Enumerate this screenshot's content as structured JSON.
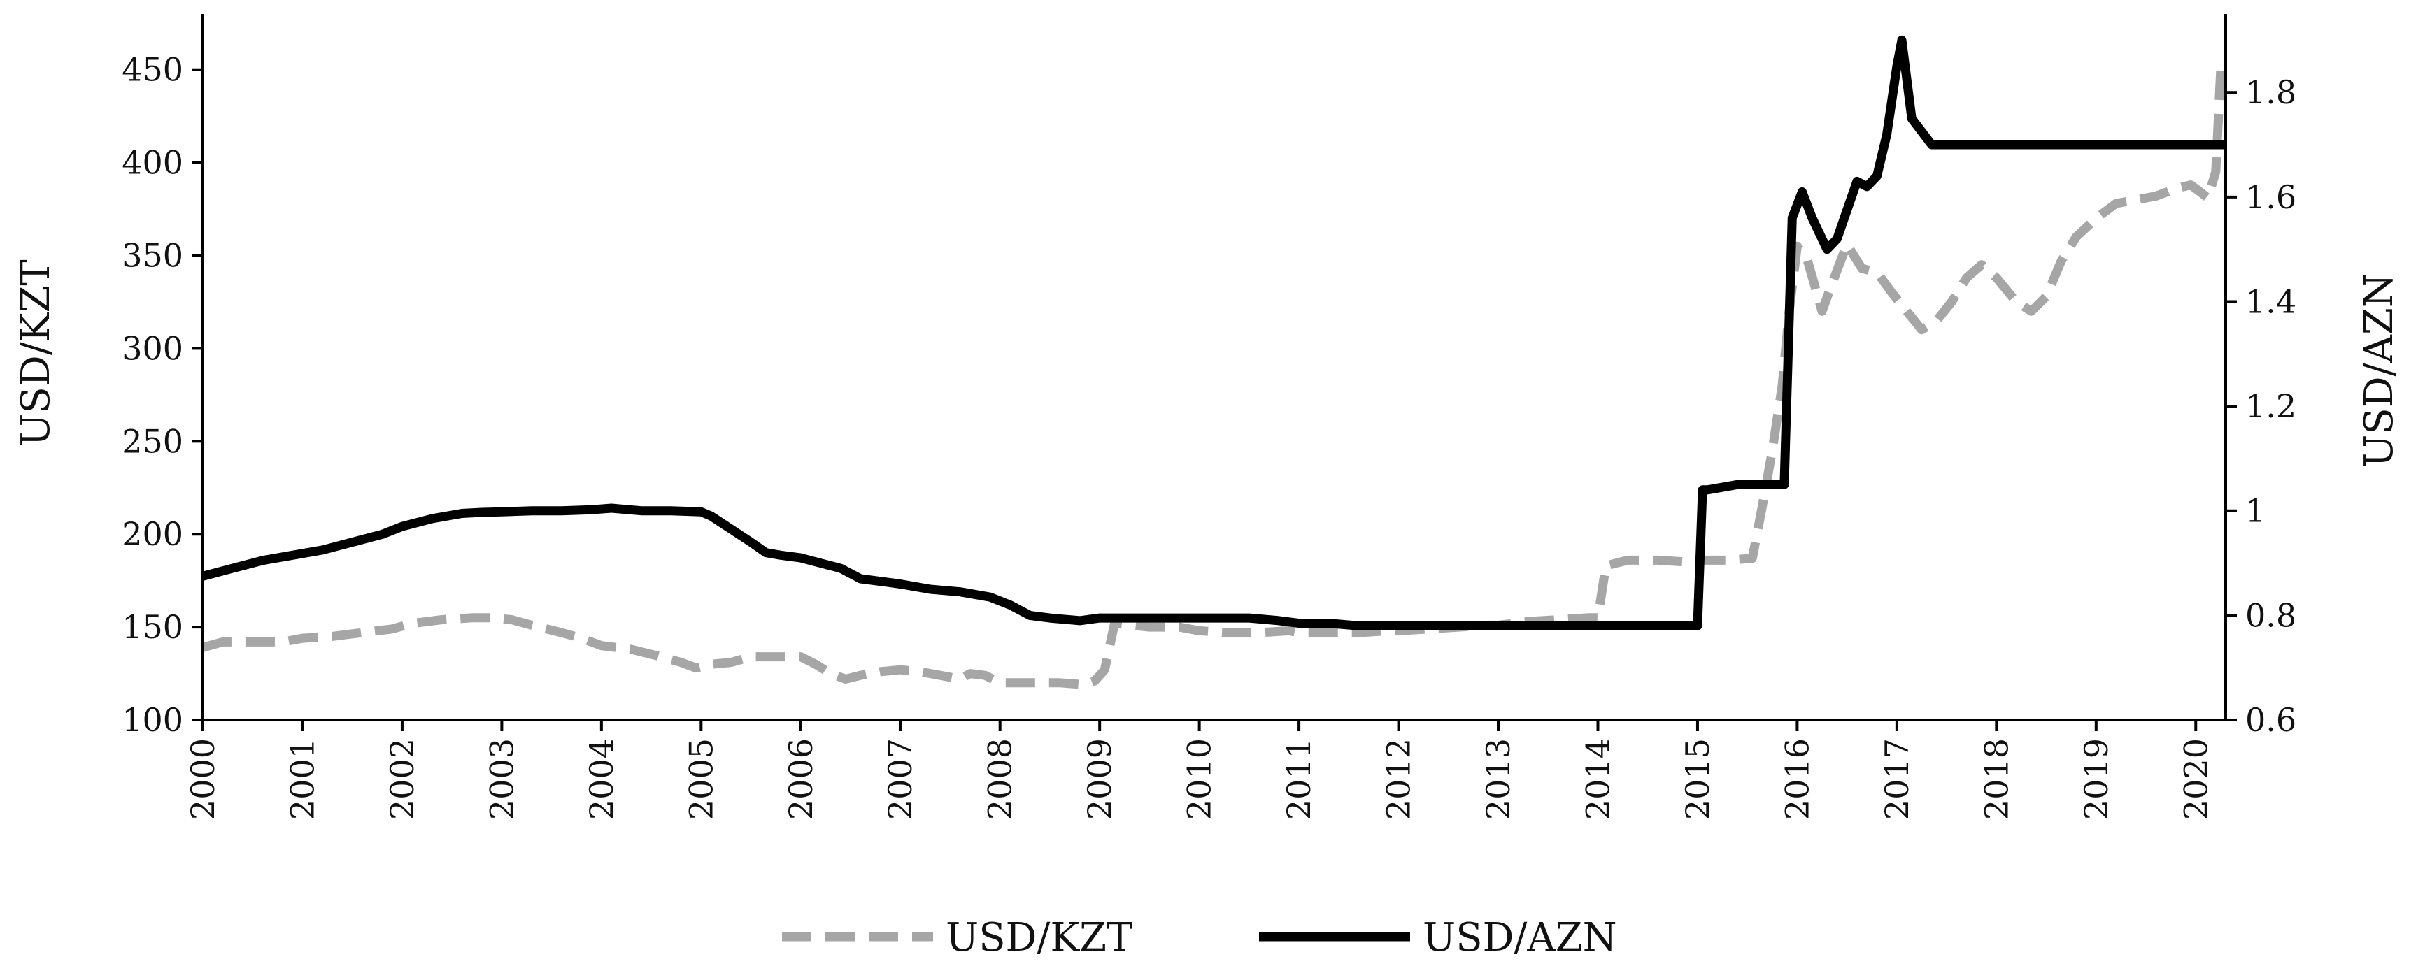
{
  "chart_data": {
    "type": "line",
    "title": "",
    "xlabel": "",
    "ylabel_left": "USD/KZT",
    "ylabel_right": "USD/AZN",
    "xlim": [
      2000,
      2020.3
    ],
    "ylim_left": [
      100,
      480
    ],
    "ylim_right": [
      0.6,
      1.95
    ],
    "yticks_left": [
      100,
      150,
      200,
      250,
      300,
      350,
      400,
      450
    ],
    "yticks_right": [
      0.6,
      0.8,
      1,
      1.2,
      1.4,
      1.6,
      1.8
    ],
    "yticks_right_labels": [
      "0.6",
      "0.8",
      "1",
      "1.2",
      "1.4",
      "1.6",
      "1.8"
    ],
    "xticks": [
      2000,
      2001,
      2002,
      2003,
      2004,
      2005,
      2006,
      2007,
      2008,
      2009,
      2010,
      2011,
      2012,
      2013,
      2014,
      2015,
      2016,
      2017,
      2018,
      2019,
      2020
    ],
    "grid": false,
    "legend_position": "bottom",
    "series": [
      {
        "name": "USD/KZT",
        "axis": "left",
        "color": "#a6a6a6",
        "dash": "dashed",
        "x": [
          2000.0,
          2000.2,
          2000.5,
          2000.8,
          2001.0,
          2001.3,
          2001.6,
          2001.9,
          2002.1,
          2002.4,
          2002.7,
          2002.9,
          2003.1,
          2003.3,
          2003.6,
          2003.8,
          2004.0,
          2004.3,
          2004.6,
          2004.8,
          2004.95,
          2005.1,
          2005.3,
          2005.5,
          2005.8,
          2006.0,
          2006.15,
          2006.3,
          2006.45,
          2006.6,
          2006.8,
          2007.0,
          2007.2,
          2007.4,
          2007.6,
          2007.7,
          2007.85,
          2008.0,
          2008.3,
          2008.6,
          2008.85,
          2008.95,
          2009.05,
          2009.15,
          2009.5,
          2009.8,
          2010.0,
          2010.3,
          2010.6,
          2010.9,
          2011.0,
          2011.3,
          2011.6,
          2011.9,
          2012.0,
          2012.3,
          2012.6,
          2012.9,
          2013.0,
          2013.3,
          2013.6,
          2013.9,
          2014.0,
          2014.08,
          2014.3,
          2014.6,
          2014.9,
          2015.0,
          2015.3,
          2015.55,
          2015.65,
          2015.75,
          2015.85,
          2015.92,
          2016.0,
          2016.1,
          2016.25,
          2016.35,
          2016.5,
          2016.65,
          2016.8,
          2016.95,
          2017.1,
          2017.25,
          2017.4,
          2017.55,
          2017.7,
          2017.85,
          2018.0,
          2018.2,
          2018.35,
          2018.5,
          2018.65,
          2018.8,
          2019.0,
          2019.2,
          2019.4,
          2019.6,
          2019.8,
          2019.95,
          2020.05,
          2020.12,
          2020.2,
          2020.25
        ],
        "values": [
          139,
          142,
          142,
          142,
          144,
          145,
          147,
          149,
          152,
          154,
          155,
          155,
          154,
          151,
          147,
          144,
          140,
          138,
          134,
          131,
          128,
          130,
          131,
          134,
          134,
          134,
          130,
          125,
          122,
          124,
          126,
          127,
          126,
          124,
          122,
          125,
          124,
          120,
          120,
          120,
          119,
          121,
          127,
          152,
          150,
          150,
          148,
          147,
          147,
          148,
          147,
          147,
          147,
          148,
          148,
          149,
          150,
          151,
          151,
          153,
          154,
          155,
          155,
          183,
          186,
          186,
          185,
          186,
          186,
          187,
          215,
          245,
          280,
          320,
          355,
          348,
          320,
          335,
          356,
          343,
          341,
          330,
          320,
          310,
          315,
          325,
          338,
          345,
          338,
          325,
          320,
          328,
          347,
          360,
          370,
          378,
          380,
          382,
          386,
          388,
          384,
          381,
          395,
          450
        ]
      },
      {
        "name": "USD/AZN",
        "axis": "right",
        "color": "#000000",
        "dash": "solid",
        "x": [
          2000.0,
          2000.3,
          2000.6,
          2000.9,
          2001.2,
          2001.5,
          2001.8,
          2002.0,
          2002.3,
          2002.6,
          2002.8,
          2003.0,
          2003.3,
          2003.6,
          2003.9,
          2004.1,
          2004.4,
          2004.7,
          2005.0,
          2005.1,
          2005.3,
          2005.5,
          2005.65,
          2005.8,
          2006.0,
          2006.2,
          2006.4,
          2006.6,
          2006.8,
          2007.0,
          2007.3,
          2007.6,
          2007.9,
          2008.1,
          2008.3,
          2008.5,
          2008.8,
          2009.0,
          2009.3,
          2009.6,
          2009.9,
          2010.2,
          2010.5,
          2010.8,
          2011.0,
          2011.3,
          2011.6,
          2011.9,
          2012.2,
          2012.5,
          2012.8,
          2013.0,
          2013.3,
          2013.6,
          2013.9,
          2014.2,
          2014.5,
          2014.8,
          2015.0,
          2015.05,
          2015.1,
          2015.4,
          2015.7,
          2015.87,
          2015.95,
          2016.05,
          2016.15,
          2016.3,
          2016.4,
          2016.6,
          2016.7,
          2016.8,
          2016.9,
          2017.0,
          2017.05,
          2017.15,
          2017.35,
          2017.6,
          2017.9,
          2018.1,
          2018.4,
          2018.7,
          2019.0,
          2019.3,
          2019.6,
          2019.9,
          2020.1,
          2020.3
        ],
        "values": [
          0.875,
          0.89,
          0.905,
          0.915,
          0.925,
          0.94,
          0.955,
          0.97,
          0.985,
          0.995,
          0.997,
          0.998,
          1.0,
          1.0,
          1.002,
          1.005,
          1.0,
          1.0,
          0.998,
          0.99,
          0.965,
          0.94,
          0.92,
          0.915,
          0.91,
          0.9,
          0.89,
          0.87,
          0.865,
          0.86,
          0.85,
          0.845,
          0.835,
          0.82,
          0.8,
          0.795,
          0.79,
          0.795,
          0.795,
          0.795,
          0.795,
          0.795,
          0.795,
          0.79,
          0.785,
          0.785,
          0.78,
          0.78,
          0.78,
          0.78,
          0.78,
          0.78,
          0.78,
          0.78,
          0.78,
          0.78,
          0.78,
          0.78,
          0.78,
          1.04,
          1.04,
          1.05,
          1.05,
          1.05,
          1.56,
          1.61,
          1.56,
          1.5,
          1.52,
          1.63,
          1.62,
          1.64,
          1.72,
          1.85,
          1.9,
          1.75,
          1.7,
          1.7,
          1.7,
          1.7,
          1.7,
          1.7,
          1.7,
          1.7,
          1.7,
          1.7,
          1.7,
          1.7
        ]
      }
    ]
  }
}
